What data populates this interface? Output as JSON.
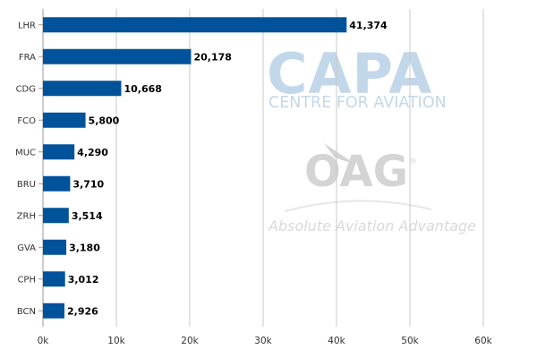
{
  "chart_data": {
    "type": "bar",
    "orientation": "horizontal",
    "categories": [
      "LHR",
      "FRA",
      "CDG",
      "FCO",
      "MUC",
      "BRU",
      "ZRH",
      "GVA",
      "CPH",
      "BCN"
    ],
    "values": [
      41374,
      20178,
      10668,
      5800,
      4290,
      3710,
      3514,
      3180,
      3012,
      2926
    ],
    "value_labels": [
      "41,374",
      "20,178",
      "10,668",
      "5,800",
      "4,290",
      "3,710",
      "3,514",
      "3,180",
      "3,012",
      "2,926"
    ],
    "xlim": [
      0,
      60000
    ],
    "xticks": [
      0,
      10000,
      20000,
      30000,
      40000,
      50000,
      60000
    ],
    "xtick_labels": [
      "0k",
      "10k",
      "20k",
      "30k",
      "40k",
      "50k",
      "60k"
    ],
    "title": "",
    "xlabel": "",
    "ylabel": "",
    "grid": "vertical",
    "legend": "none",
    "bar_color": "#00529b",
    "grid_color": "#c8c8c8"
  },
  "watermarks": {
    "capa_logo": "CAPA",
    "capa_subtitle": "CENTRE FOR AVIATION",
    "oag_logo": "OAG",
    "oag_registered": "®",
    "oag_tagline": "Absolute Aviation Advantage"
  }
}
